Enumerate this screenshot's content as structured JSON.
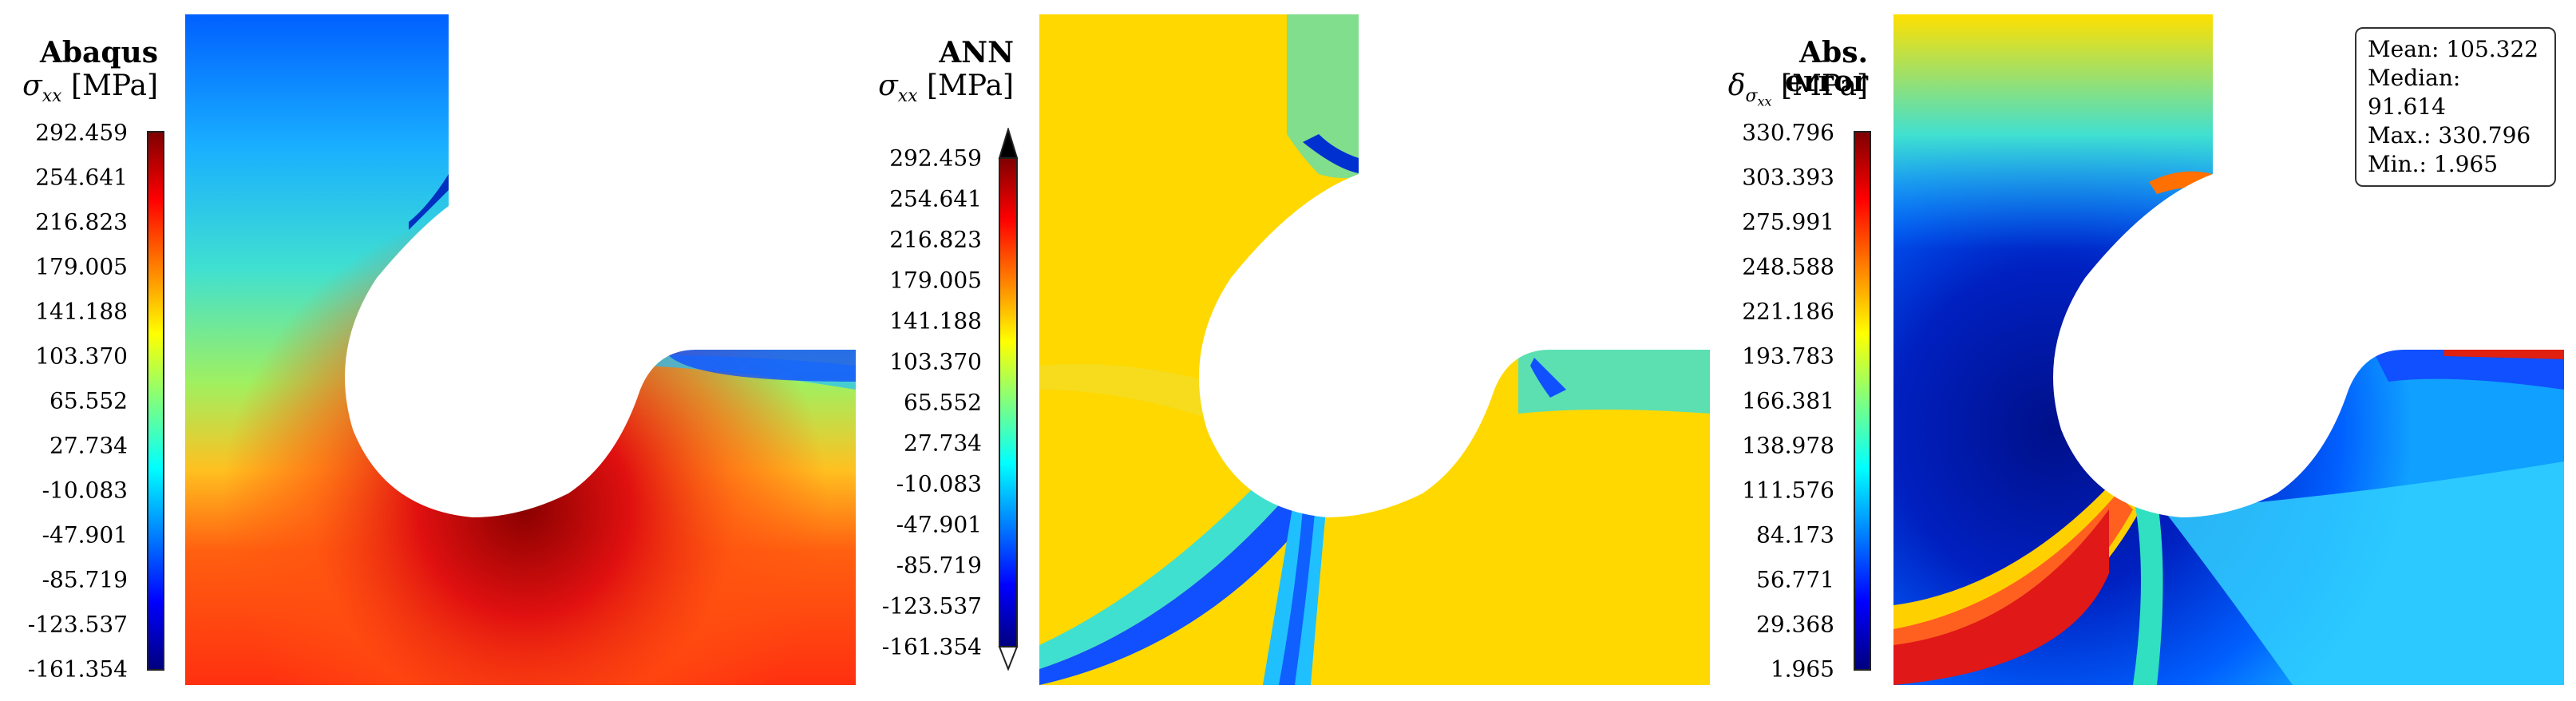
{
  "panels": [
    {
      "title": "Abaqus",
      "quantity": {
        "symbol": "σ",
        "subscript": "xx",
        "unit": "[MPa]"
      },
      "colorbar_ticks": [
        "292.459",
        "254.641",
        "216.823",
        "179.005",
        "141.188",
        "103.370",
        "65.552",
        "27.734",
        "-10.083",
        "-47.901",
        "-85.719",
        "-123.537",
        "-161.354"
      ],
      "colorbar_style": "flat"
    },
    {
      "title": "ANN",
      "quantity": {
        "symbol": "σ",
        "subscript": "xx",
        "unit": "[MPa]"
      },
      "colorbar_ticks": [
        "292.459",
        "254.641",
        "216.823",
        "179.005",
        "141.188",
        "103.370",
        "65.552",
        "27.734",
        "-10.083",
        "-47.901",
        "-85.719",
        "-123.537",
        "-161.354"
      ],
      "colorbar_style": "arrows"
    },
    {
      "title": "Abs. error",
      "quantity": {
        "symbol": "δ",
        "subscript": "σ",
        "subscript2": "xx",
        "unit": "[MPa]"
      },
      "colorbar_ticks": [
        "330.796",
        "303.393",
        "275.991",
        "248.588",
        "221.186",
        "193.783",
        "166.381",
        "138.978",
        "111.576",
        "84.173",
        "56.771",
        "29.368",
        "1.965"
      ],
      "colorbar_style": "flat",
      "stats": [
        {
          "label": "Mean:",
          "value": "105.322"
        },
        {
          "label": "Median:",
          "value": "91.614"
        },
        {
          "label": "Max.:",
          "value": "330.796"
        },
        {
          "label": "Min.:",
          "value": "1.965"
        }
      ]
    }
  ],
  "colormap": [
    "#00007f",
    "#0000ff",
    "#007fff",
    "#00ffff",
    "#7fff7f",
    "#ffff00",
    "#ff7f00",
    "#ff0000",
    "#7f0000"
  ]
}
